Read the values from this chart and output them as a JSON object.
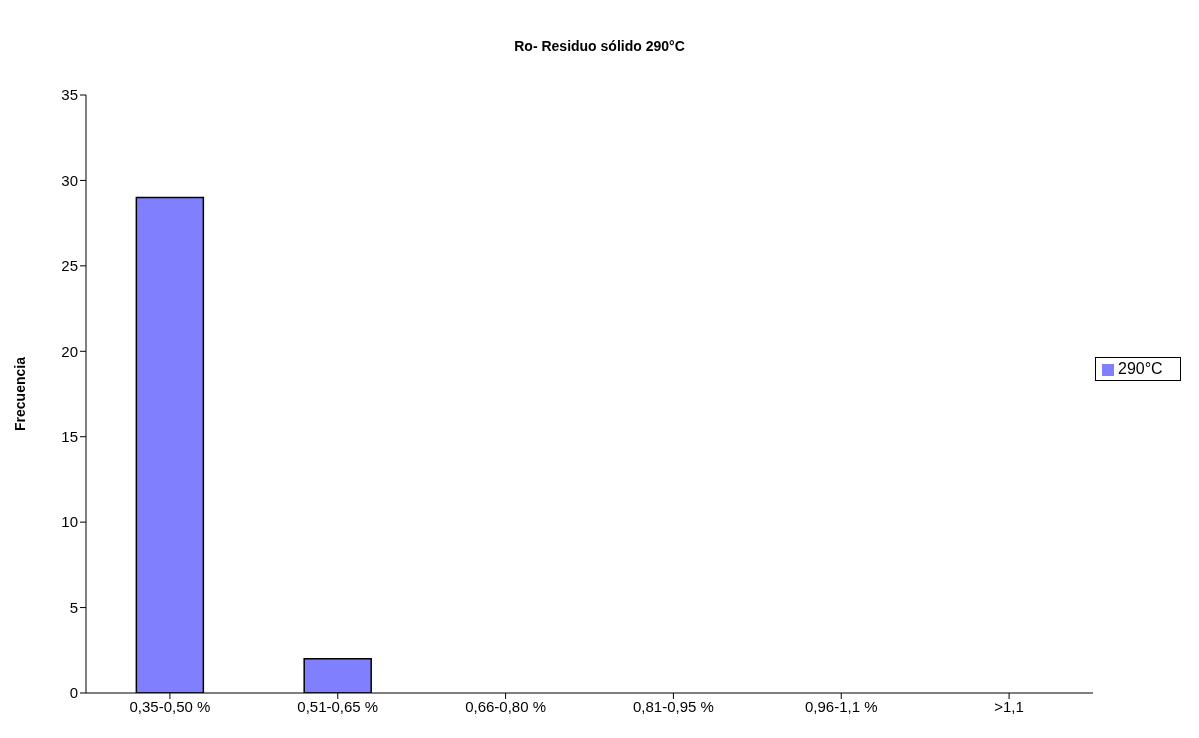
{
  "chart_data": {
    "type": "bar",
    "title": "Ro- Residuo sólido 290°C",
    "ylabel": "Frecuencia",
    "categories": [
      "0,35-0,50 %",
      "0,51-0,65 %",
      "0,66-0,80 %",
      "0,81-0,95 %",
      "0,96-1,1 %",
      ">1,1"
    ],
    "series": [
      {
        "name": "290°C",
        "color": "#8080ff",
        "values": [
          29,
          2,
          0,
          0,
          0,
          0
        ]
      }
    ],
    "ylim": [
      0,
      35
    ],
    "yticks": [
      0,
      5,
      10,
      15,
      20,
      25,
      30,
      35
    ],
    "grid": false,
    "legend": "right"
  }
}
